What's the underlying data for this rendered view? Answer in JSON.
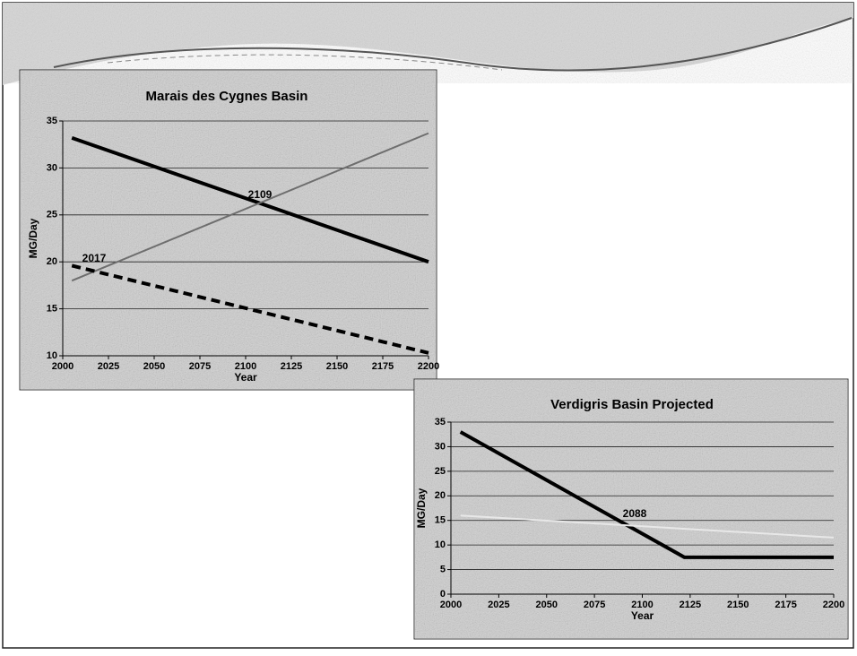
{
  "chart_data": [
    {
      "type": "line",
      "title": "Marais des Cygnes Basin",
      "xlabel": "Year",
      "ylabel": "MG/Day",
      "xlim": [
        2000,
        2200
      ],
      "xticks": [
        2000,
        2025,
        2050,
        2075,
        2100,
        2125,
        2150,
        2175,
        2200
      ],
      "ylim": [
        10,
        35
      ],
      "yticks": [
        10,
        15,
        20,
        25,
        30,
        35
      ],
      "grid": true,
      "series": [
        {
          "color": "#000000",
          "linewidth": 4,
          "style": "solid",
          "x": [
            2005,
            2200
          ],
          "values": [
            33.2,
            20
          ]
        },
        {
          "color": "#6e6e6e",
          "linewidth": 2,
          "style": "solid",
          "x": [
            2005,
            2200
          ],
          "values": [
            18,
            33.7
          ]
        },
        {
          "color": "#000000",
          "linewidth": 4,
          "style": "dashed",
          "x": [
            2005,
            2200
          ],
          "values": [
            19.6,
            10.3
          ]
        }
      ],
      "annotations": [
        "2109",
        "2017"
      ]
    },
    {
      "type": "line",
      "title": "Verdigris Basin Projected",
      "xlabel": "Year",
      "ylabel": "MG/Day",
      "xlim": [
        2000,
        2200
      ],
      "xticks": [
        2000,
        2025,
        2050,
        2075,
        2100,
        2125,
        2150,
        2175,
        2200
      ],
      "ylim": [
        0,
        35
      ],
      "yticks": [
        0,
        5,
        10,
        15,
        20,
        25,
        30,
        35
      ],
      "grid": true,
      "series": [
        {
          "color": "#000000",
          "linewidth": 4,
          "style": "solid",
          "x": [
            2005,
            2122,
            2200
          ],
          "values": [
            33,
            7.5,
            7.5
          ]
        },
        {
          "color": "#e8e8e8",
          "linewidth": 2,
          "style": "solid",
          "x": [
            2005,
            2200
          ],
          "values": [
            16,
            11.5
          ]
        }
      ],
      "annotations": [
        "2088"
      ]
    }
  ]
}
